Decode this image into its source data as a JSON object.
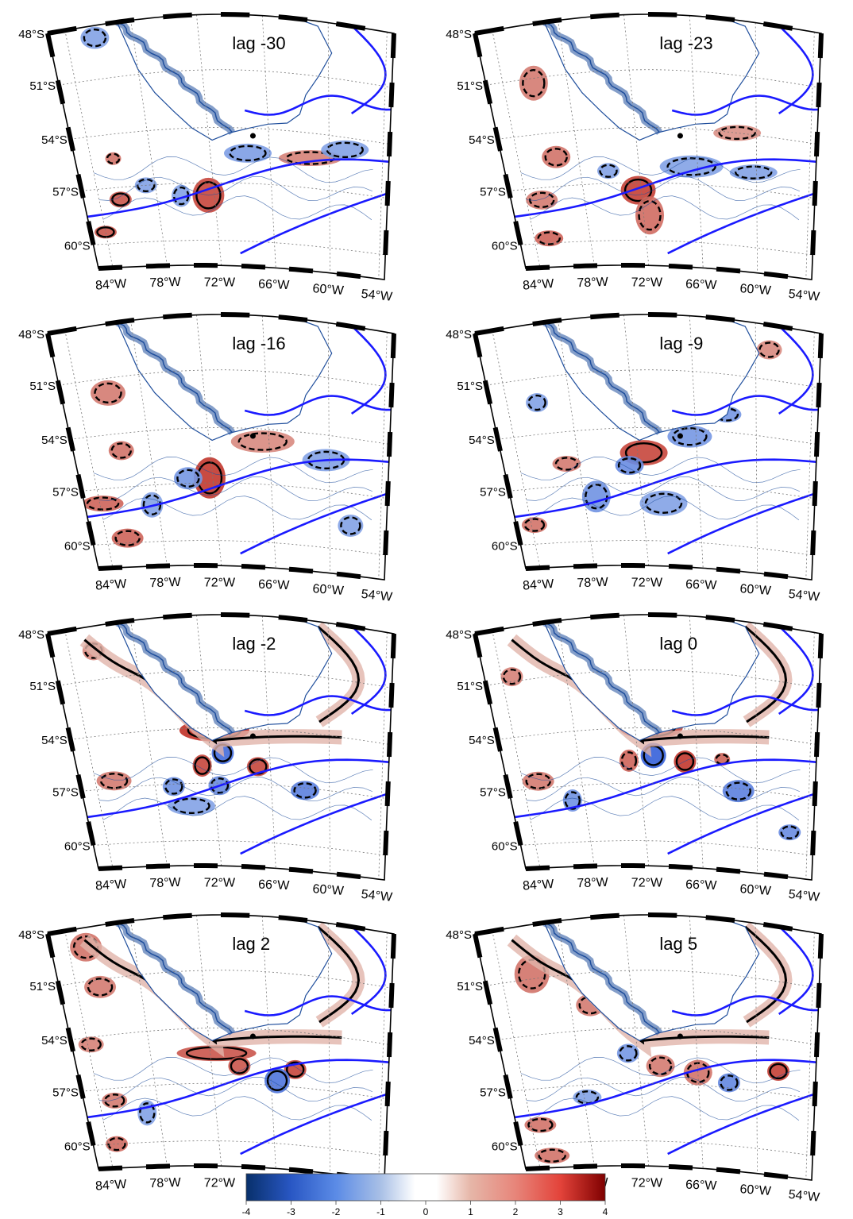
{
  "figure": {
    "panels": [
      {
        "lag": "lag -30"
      },
      {
        "lag": "lag -23"
      },
      {
        "lag": "lag -16"
      },
      {
        "lag": "lag -9"
      },
      {
        "lag": "lag -2"
      },
      {
        "lag": "lag 0"
      },
      {
        "lag": "lag 2"
      },
      {
        "lag": "lag 5"
      }
    ],
    "lat_labels": [
      "48°S",
      "51°S",
      "54°S",
      "57°S",
      "60°S"
    ],
    "lon_labels": [
      "84°W",
      "78°W",
      "72°W",
      "66°W",
      "60°W",
      "54°W"
    ],
    "colorbar": {
      "ticks": [
        "-4",
        "-3",
        "-2",
        "-1",
        "0",
        "1",
        "2",
        "3",
        "4"
      ],
      "range": [
        -4,
        4
      ]
    },
    "colors": {
      "coast": "#1f4e9c",
      "front": "#1a1aff",
      "land": "#ffffff",
      "grid": "#777777",
      "positive": "#d73027",
      "negative": "#4575b4",
      "contour": "#000000"
    }
  }
}
